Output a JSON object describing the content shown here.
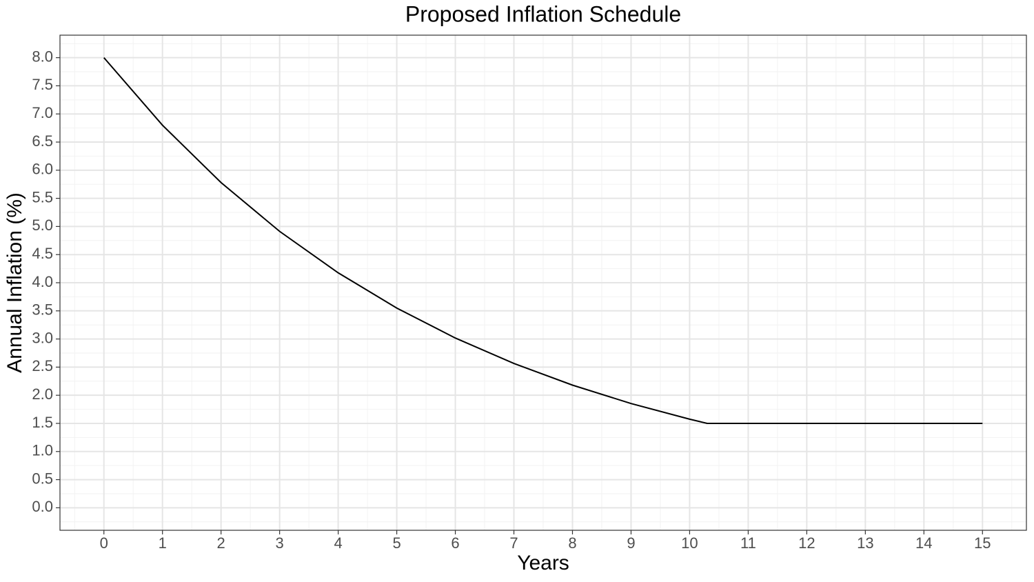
{
  "chart_data": {
    "type": "line",
    "title": "Proposed Inflation Schedule",
    "x_label": "Years",
    "y_label": "Annual Inflation (%)",
    "x": [
      0,
      1,
      2,
      3,
      4,
      5,
      6,
      7,
      8,
      9,
      10,
      10.3,
      11,
      12,
      13,
      14,
      15
    ],
    "series": [
      {
        "color": "#000000",
        "values": [
          8.0,
          6.8,
          5.78,
          4.913,
          4.176,
          3.55,
          3.017,
          2.565,
          2.18,
          1.853,
          1.575,
          1.5,
          1.5,
          1.5,
          1.5,
          1.5,
          1.5
        ]
      }
    ],
    "xlim": [
      -0.75,
      15.75
    ],
    "ylim": [
      -0.4,
      8.4
    ],
    "xticks": [
      0,
      1,
      2,
      3,
      4,
      5,
      6,
      7,
      8,
      9,
      10,
      11,
      12,
      13,
      14,
      15
    ],
    "yticks": [
      {
        "value": 0,
        "label": "0.0"
      },
      0.5,
      {
        "value": 1,
        "label": "1.0"
      },
      1.5,
      {
        "value": 2,
        "label": "2.0"
      },
      2.5,
      {
        "value": 3,
        "label": "3.0"
      },
      3.5,
      {
        "value": 4,
        "label": "4.0"
      },
      4.5,
      {
        "value": 5,
        "label": "5.0"
      },
      5.5,
      {
        "value": 6,
        "label": "6.0"
      },
      6.5,
      {
        "value": 7,
        "label": "7.0"
      },
      7.5,
      {
        "value": 8,
        "label": "8.0"
      }
    ],
    "minor_xticks": [
      -0.5,
      0.5,
      1.5,
      2.5,
      3.5,
      4.5,
      5.5,
      6.5,
      7.5,
      8.5,
      9.5,
      10.5,
      11.5,
      12.5,
      13.5,
      14.5,
      15.5
    ],
    "minor_yticks": [
      -0.25,
      0.25,
      0.75,
      1.25,
      1.75,
      2.25,
      2.75,
      3.25,
      3.75,
      4.25,
      4.75,
      5.25,
      5.75,
      6.25,
      6.75,
      7.25,
      7.75,
      8.25
    ],
    "grid": true
  }
}
